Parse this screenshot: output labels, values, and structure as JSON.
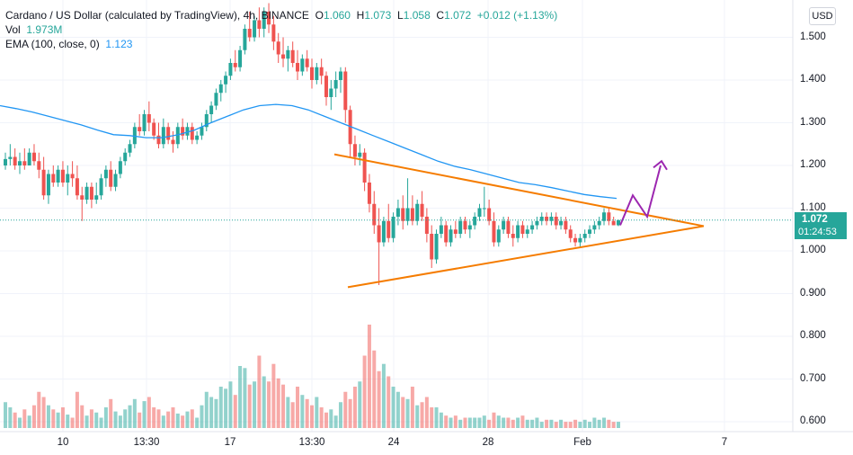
{
  "legend": {
    "symbol": "Cardano / US Dollar (calculated by TradingView), 4h, BINANCE",
    "o_label": "O",
    "o": "1.060",
    "h_label": "H",
    "h": "1.073",
    "l_label": "L",
    "l": "1.058",
    "c_label": "C",
    "c": "1.072",
    "change": "+0.012 (+1.13%)",
    "vol_label": "Vol",
    "vol": "1.973M",
    "ema_label": "EMA (100, close, 0)",
    "ema": "1.123"
  },
  "currency_button": "USD",
  "last_price": {
    "value": "1.072",
    "countdown": "01:24:53"
  },
  "colors": {
    "up": "#26a69a",
    "down": "#ef5350",
    "ema": "#2196f3",
    "triangle": "#f57c00",
    "arrow": "#9c27b0"
  },
  "chart_data": {
    "type": "candlestick",
    "price_ticks": [
      "1.500",
      "1.400",
      "1.300",
      "1.200",
      "1.100",
      "1.000",
      "0.900",
      "0.800",
      "0.700",
      "0.600"
    ],
    "time_ticks": [
      "10",
      "13:30",
      "17",
      "13:30",
      "24",
      "28",
      "Feb",
      "7"
    ],
    "ylim": [
      0.58,
      1.58
    ],
    "candles": [
      [
        1.2,
        1.23,
        1.19,
        1.215
      ],
      [
        1.215,
        1.25,
        1.2,
        1.22
      ],
      [
        1.22,
        1.24,
        1.19,
        1.2
      ],
      [
        1.2,
        1.23,
        1.18,
        1.21
      ],
      [
        1.21,
        1.24,
        1.19,
        1.2
      ],
      [
        1.2,
        1.24,
        1.2,
        1.23
      ],
      [
        1.23,
        1.25,
        1.2,
        1.21
      ],
      [
        1.21,
        1.23,
        1.17,
        1.19
      ],
      [
        1.19,
        1.22,
        1.12,
        1.13
      ],
      [
        1.13,
        1.19,
        1.11,
        1.18
      ],
      [
        1.18,
        1.2,
        1.15,
        1.16
      ],
      [
        1.16,
        1.2,
        1.15,
        1.19
      ],
      [
        1.19,
        1.21,
        1.15,
        1.16
      ],
      [
        1.16,
        1.2,
        1.13,
        1.18
      ],
      [
        1.18,
        1.21,
        1.15,
        1.17
      ],
      [
        1.17,
        1.2,
        1.12,
        1.13
      ],
      [
        1.13,
        1.15,
        1.07,
        1.12
      ],
      [
        1.12,
        1.16,
        1.11,
        1.15
      ],
      [
        1.15,
        1.16,
        1.1,
        1.12
      ],
      [
        1.12,
        1.16,
        1.11,
        1.13
      ],
      [
        1.13,
        1.18,
        1.12,
        1.17
      ],
      [
        1.17,
        1.2,
        1.15,
        1.19
      ],
      [
        1.19,
        1.21,
        1.14,
        1.15
      ],
      [
        1.15,
        1.19,
        1.14,
        1.18
      ],
      [
        1.18,
        1.22,
        1.17,
        1.21
      ],
      [
        1.21,
        1.24,
        1.2,
        1.23
      ],
      [
        1.23,
        1.26,
        1.22,
        1.25
      ],
      [
        1.25,
        1.3,
        1.24,
        1.29
      ],
      [
        1.29,
        1.32,
        1.27,
        1.28
      ],
      [
        1.28,
        1.33,
        1.27,
        1.32
      ],
      [
        1.32,
        1.35,
        1.28,
        1.3
      ],
      [
        1.3,
        1.31,
        1.26,
        1.27
      ],
      [
        1.27,
        1.3,
        1.24,
        1.25
      ],
      [
        1.25,
        1.31,
        1.24,
        1.29
      ],
      [
        1.29,
        1.3,
        1.25,
        1.26
      ],
      [
        1.26,
        1.28,
        1.23,
        1.25
      ],
      [
        1.25,
        1.3,
        1.24,
        1.29
      ],
      [
        1.29,
        1.31,
        1.26,
        1.27
      ],
      [
        1.27,
        1.3,
        1.26,
        1.29
      ],
      [
        1.29,
        1.3,
        1.25,
        1.26
      ],
      [
        1.26,
        1.28,
        1.25,
        1.27
      ],
      [
        1.27,
        1.3,
        1.26,
        1.29
      ],
      [
        1.29,
        1.33,
        1.28,
        1.32
      ],
      [
        1.32,
        1.35,
        1.3,
        1.34
      ],
      [
        1.34,
        1.38,
        1.33,
        1.37
      ],
      [
        1.37,
        1.4,
        1.35,
        1.39
      ],
      [
        1.39,
        1.42,
        1.37,
        1.41
      ],
      [
        1.41,
        1.45,
        1.4,
        1.44
      ],
      [
        1.44,
        1.47,
        1.42,
        1.43
      ],
      [
        1.43,
        1.48,
        1.42,
        1.47
      ],
      [
        1.47,
        1.53,
        1.46,
        1.52
      ],
      [
        1.52,
        1.56,
        1.49,
        1.5
      ],
      [
        1.5,
        1.55,
        1.49,
        1.54
      ],
      [
        1.54,
        1.57,
        1.5,
        1.52
      ],
      [
        1.52,
        1.57,
        1.5,
        1.56
      ],
      [
        1.56,
        1.58,
        1.51,
        1.53
      ],
      [
        1.53,
        1.55,
        1.47,
        1.49
      ],
      [
        1.49,
        1.51,
        1.44,
        1.46
      ],
      [
        1.46,
        1.5,
        1.43,
        1.45
      ],
      [
        1.45,
        1.48,
        1.42,
        1.47
      ],
      [
        1.47,
        1.49,
        1.43,
        1.44
      ],
      [
        1.44,
        1.47,
        1.4,
        1.42
      ],
      [
        1.42,
        1.46,
        1.41,
        1.45
      ],
      [
        1.45,
        1.47,
        1.42,
        1.43
      ],
      [
        1.43,
        1.45,
        1.38,
        1.4
      ],
      [
        1.4,
        1.44,
        1.39,
        1.43
      ],
      [
        1.43,
        1.45,
        1.39,
        1.41
      ],
      [
        1.41,
        1.42,
        1.34,
        1.36
      ],
      [
        1.36,
        1.4,
        1.33,
        1.38
      ],
      [
        1.38,
        1.42,
        1.36,
        1.4
      ],
      [
        1.4,
        1.43,
        1.37,
        1.42
      ],
      [
        1.42,
        1.43,
        1.3,
        1.33
      ],
      [
        1.33,
        1.34,
        1.22,
        1.25
      ],
      [
        1.25,
        1.27,
        1.2,
        1.22
      ],
      [
        1.22,
        1.25,
        1.2,
        1.23
      ],
      [
        1.23,
        1.24,
        1.14,
        1.16
      ],
      [
        1.16,
        1.18,
        1.09,
        1.11
      ],
      [
        1.11,
        1.14,
        1.04,
        1.06
      ],
      [
        1.06,
        1.1,
        0.92,
        1.02
      ],
      [
        1.02,
        1.08,
        1.01,
        1.07
      ],
      [
        1.07,
        1.11,
        1.02,
        1.03
      ],
      [
        1.03,
        1.09,
        1.02,
        1.08
      ],
      [
        1.08,
        1.12,
        1.06,
        1.1
      ],
      [
        1.1,
        1.13,
        1.05,
        1.07
      ],
      [
        1.07,
        1.17,
        1.06,
        1.1
      ],
      [
        1.1,
        1.13,
        1.06,
        1.07
      ],
      [
        1.07,
        1.12,
        1.06,
        1.11
      ],
      [
        1.11,
        1.14,
        1.07,
        1.08
      ],
      [
        1.08,
        1.1,
        1.02,
        1.04
      ],
      [
        1.04,
        1.06,
        0.96,
        0.98
      ],
      [
        0.98,
        1.05,
        0.97,
        1.04
      ],
      [
        1.04,
        1.08,
        1.03,
        1.06
      ],
      [
        1.06,
        1.07,
        1.01,
        1.02
      ],
      [
        1.02,
        1.06,
        1.01,
        1.05
      ],
      [
        1.05,
        1.07,
        1.03,
        1.04
      ],
      [
        1.04,
        1.08,
        1.03,
        1.07
      ],
      [
        1.07,
        1.08,
        1.04,
        1.05
      ],
      [
        1.05,
        1.07,
        1.03,
        1.06
      ],
      [
        1.06,
        1.09,
        1.05,
        1.08
      ],
      [
        1.08,
        1.11,
        1.07,
        1.1
      ],
      [
        1.1,
        1.15,
        1.08,
        1.1
      ],
      [
        1.1,
        1.12,
        1.06,
        1.07
      ],
      [
        1.07,
        1.09,
        1.01,
        1.02
      ],
      [
        1.02,
        1.06,
        1.01,
        1.05
      ],
      [
        1.05,
        1.08,
        1.04,
        1.07
      ],
      [
        1.07,
        1.08,
        1.03,
        1.04
      ],
      [
        1.04,
        1.06,
        1.01,
        1.03
      ],
      [
        1.03,
        1.07,
        1.02,
        1.06
      ],
      [
        1.06,
        1.07,
        1.03,
        1.04
      ],
      [
        1.04,
        1.06,
        1.03,
        1.05
      ],
      [
        1.05,
        1.07,
        1.04,
        1.06
      ],
      [
        1.06,
        1.08,
        1.05,
        1.07
      ],
      [
        1.07,
        1.09,
        1.06,
        1.08
      ],
      [
        1.08,
        1.09,
        1.06,
        1.07
      ],
      [
        1.07,
        1.09,
        1.06,
        1.08
      ],
      [
        1.08,
        1.09,
        1.05,
        1.06
      ],
      [
        1.06,
        1.08,
        1.05,
        1.07
      ],
      [
        1.07,
        1.08,
        1.04,
        1.05
      ],
      [
        1.05,
        1.06,
        1.02,
        1.03
      ],
      [
        1.03,
        1.04,
        1.01,
        1.02
      ],
      [
        1.02,
        1.04,
        1.01,
        1.03
      ],
      [
        1.03,
        1.05,
        1.02,
        1.04
      ],
      [
        1.04,
        1.06,
        1.03,
        1.05
      ],
      [
        1.05,
        1.07,
        1.04,
        1.06
      ],
      [
        1.06,
        1.08,
        1.05,
        1.07
      ],
      [
        1.07,
        1.1,
        1.06,
        1.09
      ],
      [
        1.09,
        1.1,
        1.06,
        1.07
      ],
      [
        1.07,
        1.08,
        1.06,
        1.06
      ],
      [
        1.06,
        1.073,
        1.058,
        1.072
      ]
    ],
    "volumes": [
      0.25,
      0.2,
      0.15,
      0.1,
      0.18,
      0.12,
      0.22,
      0.35,
      0.3,
      0.22,
      0.18,
      0.15,
      0.2,
      0.13,
      0.1,
      0.35,
      0.22,
      0.12,
      0.18,
      0.15,
      0.1,
      0.2,
      0.28,
      0.16,
      0.12,
      0.18,
      0.22,
      0.28,
      0.15,
      0.26,
      0.3,
      0.2,
      0.18,
      0.12,
      0.16,
      0.2,
      0.14,
      0.12,
      0.16,
      0.18,
      0.1,
      0.22,
      0.35,
      0.3,
      0.28,
      0.4,
      0.38,
      0.45,
      0.32,
      0.6,
      0.58,
      0.42,
      0.45,
      0.7,
      0.5,
      0.45,
      0.62,
      0.48,
      0.42,
      0.3,
      0.25,
      0.4,
      0.32,
      0.28,
      0.22,
      0.3,
      0.2,
      0.15,
      0.18,
      0.12,
      0.25,
      0.35,
      0.28,
      0.4,
      0.45,
      0.7,
      1.0,
      0.75,
      0.55,
      0.62,
      0.5,
      0.4,
      0.35,
      0.3,
      0.28,
      0.4,
      0.22,
      0.25,
      0.3,
      0.2,
      0.2,
      0.15,
      0.12,
      0.1,
      0.12,
      0.08,
      0.1,
      0.1,
      0.1,
      0.1,
      0.12,
      0.08,
      0.15,
      0.12,
      0.1,
      0.1,
      0.08,
      0.1,
      0.12,
      0.08,
      0.08,
      0.1,
      0.06,
      0.08,
      0.08,
      0.06,
      0.08,
      0.06,
      0.06,
      0.08,
      0.06,
      0.08,
      0.06,
      0.1,
      0.08,
      0.1,
      0.08,
      0.06,
      0.06,
      0.02
    ],
    "ema": [
      1.34,
      1.333,
      1.325,
      1.315,
      1.305,
      1.295,
      1.283,
      1.272,
      1.27,
      1.265,
      1.265,
      1.272,
      1.283,
      1.3,
      1.315,
      1.33,
      1.34,
      1.343,
      1.34,
      1.33,
      1.315,
      1.3,
      1.285,
      1.27,
      1.255,
      1.24,
      1.225,
      1.21,
      1.198,
      1.19,
      1.18,
      1.17,
      1.16,
      1.155,
      1.148,
      1.14,
      1.132,
      1.127,
      1.123
    ]
  }
}
